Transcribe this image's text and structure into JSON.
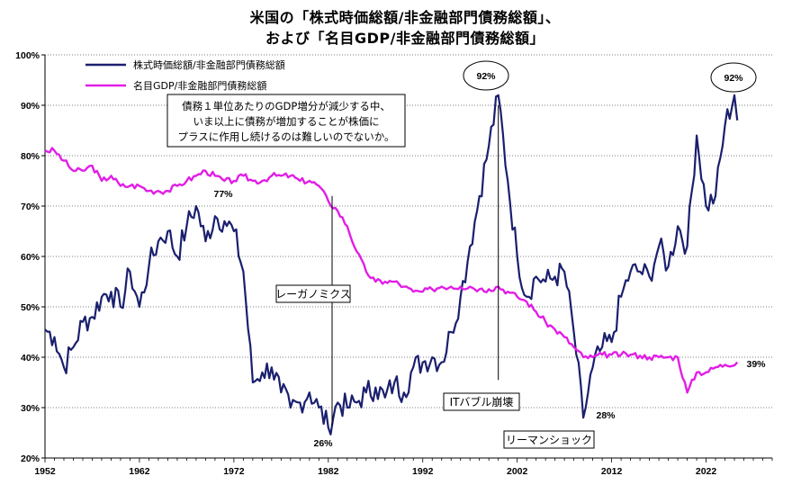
{
  "title_line1": "米国の「株式時価総額/非金融部門債務総額」、",
  "title_line2": "および「名目GDP/非金融部門債務総額」",
  "chart_data": {
    "type": "line",
    "title": "米国の「株式時価総額/非金融部門債務総額」、および「名目GDP/非金融部門債務総額」",
    "xlabel": "",
    "ylabel": "",
    "xlim": [
      1952,
      2029
    ],
    "ylim": [
      20,
      100
    ],
    "x_ticks": [
      "1952",
      "1962",
      "1972",
      "1982",
      "1992",
      "2002",
      "2012",
      "2022"
    ],
    "y_ticks": [
      "20%",
      "30%",
      "40%",
      "50%",
      "60%",
      "70%",
      "80%",
      "90%",
      "100%"
    ],
    "legend": {
      "position": "top-left"
    },
    "series": [
      {
        "name": "株式時価総額/非金融部門債務総額",
        "color": "#1a1f6e",
        "points": [
          [
            1952,
            45.5
          ],
          [
            1953,
            44
          ],
          [
            1954,
            38
          ],
          [
            1955,
            42
          ],
          [
            1956,
            47
          ],
          [
            1957,
            48
          ],
          [
            1958,
            52
          ],
          [
            1959,
            53
          ],
          [
            1960,
            50
          ],
          [
            1961,
            57
          ],
          [
            1962,
            50
          ],
          [
            1963,
            58
          ],
          [
            1964,
            63
          ],
          [
            1965,
            65
          ],
          [
            1966,
            60
          ],
          [
            1967,
            66
          ],
          [
            1968,
            70
          ],
          [
            1969,
            63
          ],
          [
            1970,
            68
          ],
          [
            1971,
            67
          ],
          [
            1972,
            65
          ],
          [
            1973,
            57
          ],
          [
            1974,
            35
          ],
          [
            1975,
            37
          ],
          [
            1976,
            38
          ],
          [
            1977,
            33
          ],
          [
            1978,
            30
          ],
          [
            1979,
            31
          ],
          [
            1980,
            33
          ],
          [
            1981,
            30
          ],
          [
            1982,
            26
          ],
          [
            1983,
            31
          ],
          [
            1984,
            30
          ],
          [
            1985,
            31
          ],
          [
            1986,
            33
          ],
          [
            1987,
            34
          ],
          [
            1988,
            32
          ],
          [
            1989,
            35
          ],
          [
            1990,
            33
          ],
          [
            1991,
            38
          ],
          [
            1992,
            39
          ],
          [
            1993,
            40
          ],
          [
            1994,
            39
          ],
          [
            1995,
            45
          ],
          [
            1996,
            52
          ],
          [
            1997,
            62
          ],
          [
            1998,
            72
          ],
          [
            1999,
            82
          ],
          [
            2000,
            92
          ],
          [
            2001,
            75
          ],
          [
            2002,
            60
          ],
          [
            2003,
            52
          ],
          [
            2004,
            56
          ],
          [
            2005,
            55
          ],
          [
            2006,
            56
          ],
          [
            2007,
            57
          ],
          [
            2008,
            45
          ],
          [
            2009,
            28
          ],
          [
            2010,
            38
          ],
          [
            2011,
            42
          ],
          [
            2012,
            43
          ],
          [
            2013,
            52
          ],
          [
            2014,
            57
          ],
          [
            2015,
            57
          ],
          [
            2016,
            56
          ],
          [
            2017,
            62
          ],
          [
            2018,
            58
          ],
          [
            2019,
            66
          ],
          [
            2020,
            62
          ],
          [
            2021,
            84
          ],
          [
            2022,
            70
          ],
          [
            2023,
            72
          ],
          [
            2024,
            86
          ],
          [
            2025,
            92
          ],
          [
            2025.3,
            87
          ]
        ]
      },
      {
        "name": "名目GDP/非金融部門債務総額",
        "color": "#e11ee6",
        "points": [
          [
            1952,
            81
          ],
          [
            1953,
            81
          ],
          [
            1954,
            79
          ],
          [
            1955,
            77
          ],
          [
            1956,
            77
          ],
          [
            1957,
            78
          ],
          [
            1958,
            75
          ],
          [
            1959,
            76
          ],
          [
            1960,
            74
          ],
          [
            1961,
            74
          ],
          [
            1962,
            74
          ],
          [
            1963,
            73
          ],
          [
            1964,
            73
          ],
          [
            1965,
            73
          ],
          [
            1966,
            74
          ],
          [
            1967,
            75
          ],
          [
            1968,
            76
          ],
          [
            1969,
            77
          ],
          [
            1970,
            76
          ],
          [
            1971,
            75
          ],
          [
            1972,
            75
          ],
          [
            1973,
            76
          ],
          [
            1974,
            75
          ],
          [
            1975,
            75
          ],
          [
            1976,
            76
          ],
          [
            1977,
            76
          ],
          [
            1978,
            76
          ],
          [
            1979,
            75
          ],
          [
            1980,
            75
          ],
          [
            1981,
            74
          ],
          [
            1982,
            71
          ],
          [
            1983,
            69
          ],
          [
            1984,
            66
          ],
          [
            1985,
            61
          ],
          [
            1986,
            57
          ],
          [
            1987,
            55
          ],
          [
            1988,
            55
          ],
          [
            1989,
            55
          ],
          [
            1990,
            54
          ],
          [
            1991,
            53
          ],
          [
            1992,
            53
          ],
          [
            1993,
            53.5
          ],
          [
            1994,
            54
          ],
          [
            1995,
            54
          ],
          [
            1996,
            54
          ],
          [
            1997,
            54
          ],
          [
            1998,
            53.5
          ],
          [
            1999,
            53.5
          ],
          [
            2000,
            54
          ],
          [
            2001,
            53
          ],
          [
            2002,
            52
          ],
          [
            2003,
            51
          ],
          [
            2004,
            49
          ],
          [
            2005,
            47
          ],
          [
            2006,
            45.5
          ],
          [
            2007,
            44
          ],
          [
            2008,
            42
          ],
          [
            2009,
            40
          ],
          [
            2010,
            40
          ],
          [
            2011,
            40.5
          ],
          [
            2012,
            40.5
          ],
          [
            2013,
            40.5
          ],
          [
            2014,
            40.5
          ],
          [
            2015,
            40.3
          ],
          [
            2016,
            40
          ],
          [
            2017,
            40
          ],
          [
            2018,
            40
          ],
          [
            2019,
            40
          ],
          [
            2020,
            33
          ],
          [
            2021,
            37
          ],
          [
            2022,
            37
          ],
          [
            2023,
            38
          ],
          [
            2024,
            38.5
          ],
          [
            2025.3,
            39
          ]
        ]
      }
    ],
    "annotations": {
      "note": [
        "債務１単位あたりのGDP増分が減少する中、",
        "いま以上に債務が増加することが株価に",
        "プラスに作用し続けるのは難しいのでないか。"
      ],
      "events": [
        "レーガノミクス",
        "ITバブル崩壊",
        "リーマンショック"
      ],
      "value_labels": [
        "77%",
        "26%",
        "92%",
        "28%",
        "92%",
        "39%"
      ]
    }
  }
}
